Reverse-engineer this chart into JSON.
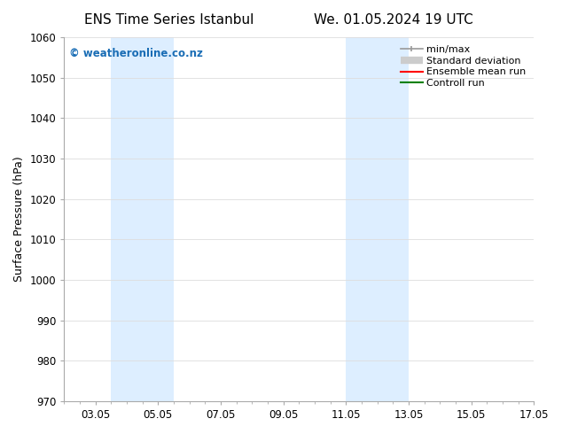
{
  "title_left": "ENS Time Series Istanbul",
  "title_right": "We. 01.05.2024 19 UTC",
  "ylabel": "Surface Pressure (hPa)",
  "ylim": [
    970,
    1060
  ],
  "yticks": [
    970,
    980,
    990,
    1000,
    1010,
    1020,
    1030,
    1040,
    1050,
    1060
  ],
  "xlim": [
    2.0,
    17.0
  ],
  "xtick_positions": [
    3,
    5,
    7,
    9,
    11,
    13,
    15,
    17
  ],
  "xtick_labels": [
    "03.05",
    "05.05",
    "07.05",
    "09.05",
    "11.05",
    "13.05",
    "15.05",
    "17.05"
  ],
  "shaded_bands": [
    {
      "x_start": 3.5,
      "x_end": 5.5
    },
    {
      "x_start": 11.0,
      "x_end": 13.0
    }
  ],
  "shade_color": "#ddeeff",
  "watermark_text": "© weatheronline.co.nz",
  "watermark_color": "#1a6db5",
  "legend_labels": [
    "min/max",
    "Standard deviation",
    "Ensemble mean run",
    "Controll run"
  ],
  "legend_colors": [
    "#999999",
    "#cccccc",
    "#ff0000",
    "#008000"
  ],
  "background_color": "#ffffff",
  "grid_color": "#dddddd",
  "title_fontsize": 11,
  "label_fontsize": 9,
  "tick_fontsize": 8.5,
  "watermark_fontsize": 8.5,
  "legend_fontsize": 8
}
